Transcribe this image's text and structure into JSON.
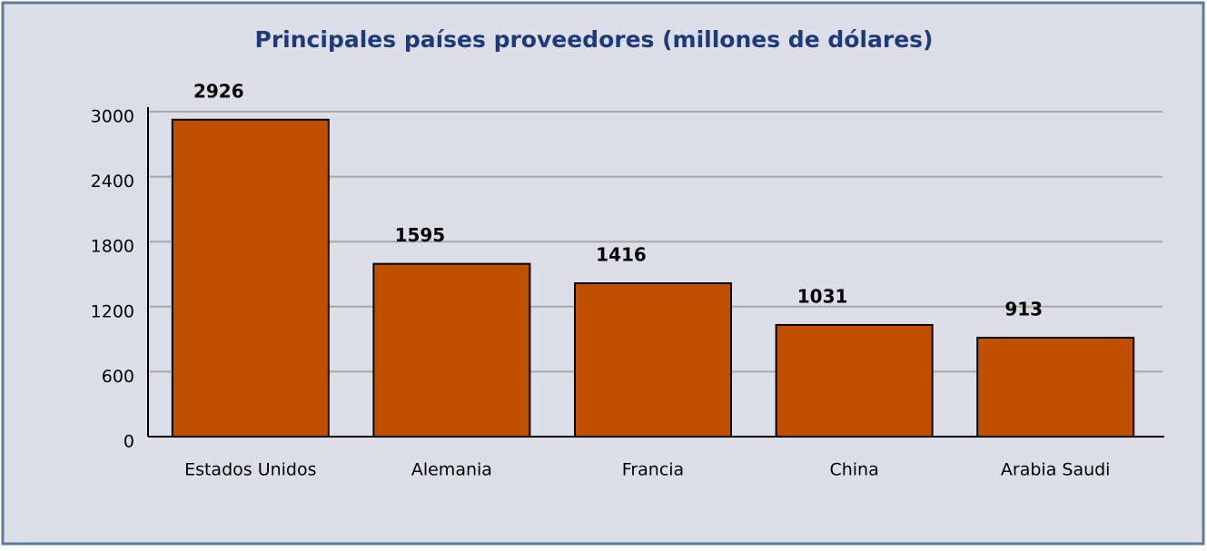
{
  "chart_data": {
    "type": "bar",
    "title": "Principales países proveedores (millones de dólares)",
    "categories": [
      "Estados Unidos",
      "Alemania",
      "Francia",
      "China",
      "Arabia Saudi"
    ],
    "values": [
      2926,
      1595,
      1416,
      1031,
      913
    ],
    "color": "#c05000",
    "ylim": [
      0,
      3000
    ],
    "yticks": [
      0,
      600,
      1200,
      1800,
      2400,
      3000
    ],
    "grid": true
  }
}
